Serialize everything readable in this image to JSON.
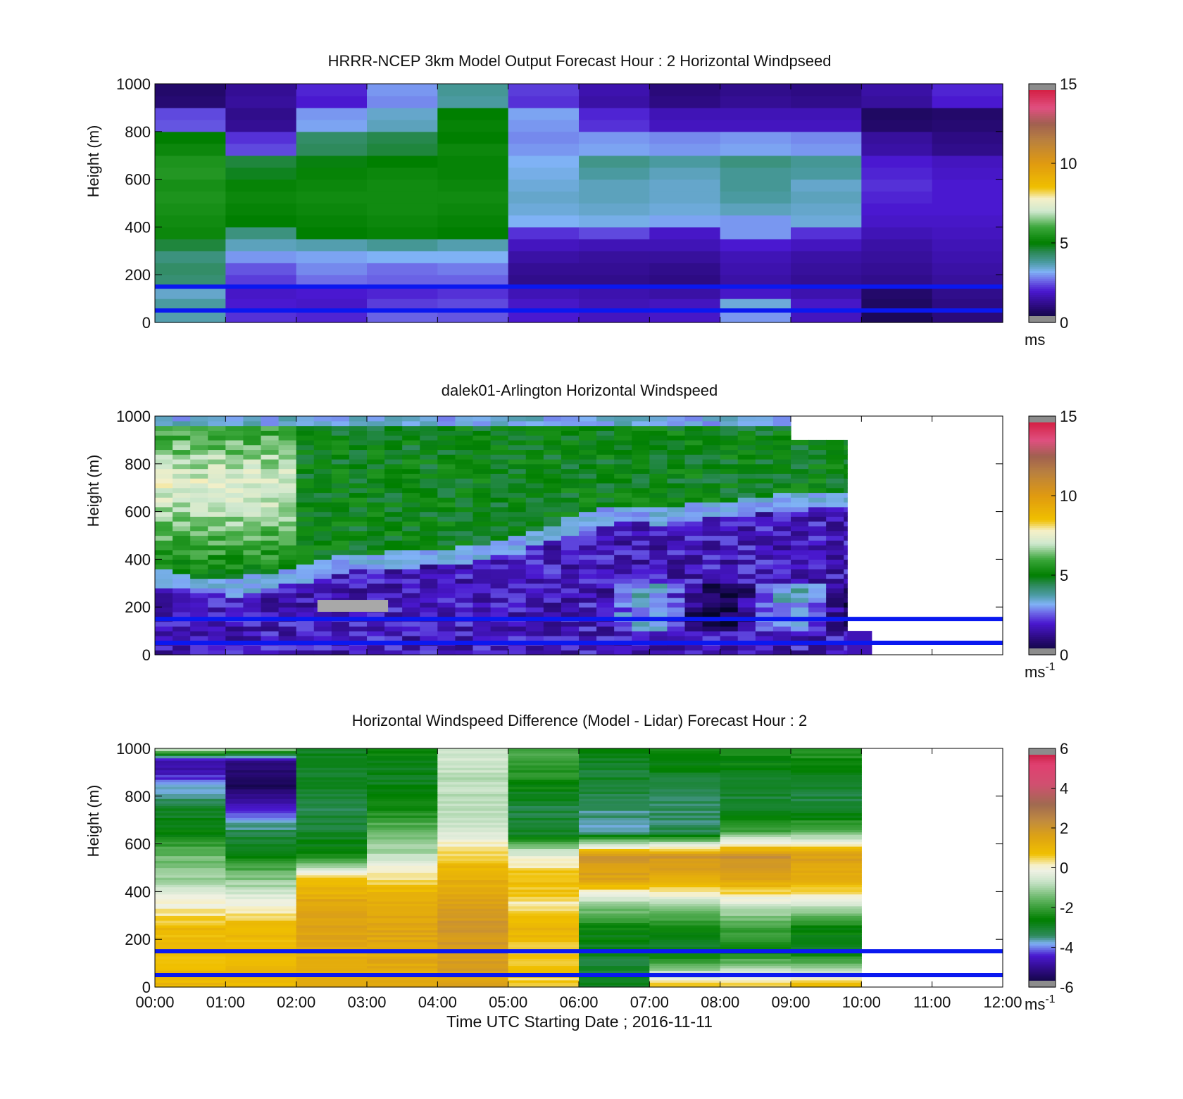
{
  "figure": {
    "xlabel": "Time UTC  Starting Date ; 2016-11-11"
  },
  "chart_data": [
    {
      "type": "heatmap",
      "title": "HRRR-NCEP 3km Model Output   Forecast Hour : 2 Horizontal Windpseed",
      "ylabel": "Height (m)",
      "ylim": [
        0,
        1000
      ],
      "yticks": [
        "0",
        "200",
        "400",
        "600",
        "800",
        "1000"
      ],
      "xlim": [
        0,
        12
      ],
      "x_tick_labels_shown": false,
      "colorbar": {
        "range": [
          0,
          15
        ],
        "ticks": [
          "0",
          "5",
          "10",
          "15"
        ],
        "unit": "ms",
        "unit_sup": ""
      },
      "colormap": "speed",
      "reference_lines_m": [
        150,
        50
      ],
      "reference_line_color": "#0a18f0",
      "levels_m": [
        50,
        100,
        150,
        200,
        250,
        300,
        350,
        400,
        450,
        500,
        550,
        600,
        650,
        700,
        750,
        800,
        850,
        900,
        950,
        1000
      ],
      "columns_hour": [
        0,
        1,
        2,
        3,
        4,
        5,
        6,
        7,
        8,
        9,
        10,
        11
      ],
      "values": [
        [
          3.7,
          2.2,
          2.1,
          2.6,
          2.5,
          2.0,
          1.8,
          1.9,
          3.0,
          1.8,
          0.6,
          1.0
        ],
        [
          3.8,
          2.0,
          1.9,
          2.3,
          2.4,
          1.9,
          1.7,
          1.8,
          3.4,
          1.9,
          0.7,
          1.1
        ],
        [
          3.5,
          1.9,
          2.0,
          2.1,
          2.2,
          1.7,
          1.6,
          1.5,
          1.9,
          1.6,
          0.8,
          1.2
        ],
        [
          4.2,
          2.3,
          2.7,
          2.6,
          2.6,
          1.2,
          1.2,
          1.1,
          1.5,
          1.3,
          1.2,
          1.4
        ],
        [
          4.3,
          2.5,
          2.9,
          2.7,
          2.8,
          1.3,
          1.3,
          1.2,
          1.6,
          1.4,
          1.3,
          1.5
        ],
        [
          4.1,
          3.0,
          3.1,
          3.2,
          3.2,
          1.5,
          1.4,
          1.4,
          1.7,
          1.5,
          1.4,
          1.6
        ],
        [
          4.6,
          3.6,
          3.7,
          3.9,
          3.7,
          1.8,
          1.7,
          1.7,
          2.0,
          1.8,
          1.5,
          1.7
        ],
        [
          5.2,
          4.1,
          5.0,
          5.1,
          5.0,
          2.2,
          2.4,
          1.9,
          3.0,
          2.2,
          1.7,
          1.8
        ],
        [
          5.3,
          5.0,
          5.1,
          5.2,
          5.1,
          3.2,
          3.3,
          3.1,
          3.0,
          3.4,
          1.9,
          1.9
        ],
        [
          5.4,
          5.1,
          5.2,
          5.3,
          5.2,
          3.4,
          3.5,
          3.4,
          3.6,
          3.5,
          2.0,
          2.0
        ],
        [
          5.5,
          5.2,
          5.3,
          5.3,
          5.3,
          3.5,
          3.6,
          3.5,
          3.8,
          3.6,
          2.1,
          2.0
        ],
        [
          5.4,
          5.1,
          5.2,
          5.3,
          5.2,
          3.4,
          3.6,
          3.5,
          3.9,
          3.5,
          2.2,
          2.0
        ],
        [
          5.6,
          4.8,
          5.1,
          5.2,
          5.1,
          3.3,
          3.8,
          3.6,
          3.9,
          3.8,
          2.1,
          1.9
        ],
        [
          5.5,
          4.6,
          4.9,
          5.0,
          5.1,
          3.2,
          4.0,
          3.8,
          4.1,
          3.9,
          2.0,
          1.8
        ],
        [
          5.2,
          2.4,
          4.4,
          4.6,
          5.2,
          3.0,
          3.1,
          3.0,
          3.1,
          3.0,
          1.5,
          1.2
        ],
        [
          5.0,
          2.2,
          4.3,
          4.5,
          5.0,
          2.9,
          3.0,
          2.9,
          3.0,
          2.9,
          1.4,
          1.1
        ],
        [
          2.5,
          1.3,
          3.1,
          3.6,
          5.1,
          3.0,
          2.2,
          1.8,
          1.8,
          1.8,
          0.8,
          0.9
        ],
        [
          2.4,
          1.2,
          3.0,
          3.5,
          5.0,
          3.1,
          2.1,
          1.7,
          1.7,
          1.7,
          0.7,
          0.8
        ],
        [
          0.9,
          1.4,
          2.0,
          2.9,
          3.8,
          2.2,
          1.5,
          1.1,
          1.3,
          1.2,
          1.4,
          2.0
        ],
        [
          0.8,
          1.3,
          2.1,
          3.0,
          3.9,
          2.3,
          1.6,
          1.0,
          1.2,
          1.1,
          1.5,
          2.1
        ]
      ]
    },
    {
      "type": "heatmap",
      "title": "dalek01-Arlington  Horizontal Windspeed",
      "ylabel": "Height (m)",
      "ylim": [
        0,
        1000
      ],
      "yticks": [
        "0",
        "200",
        "400",
        "600",
        "800",
        "1000"
      ],
      "xlim": [
        0,
        12
      ],
      "x_tick_labels_shown": false,
      "colorbar": {
        "range": [
          0,
          15
        ],
        "ticks": [
          "0",
          "5",
          "10",
          "15"
        ],
        "unit": "ms",
        "unit_sup": "-1"
      },
      "colormap": "speed",
      "reference_lines_m": [
        150,
        50
      ],
      "reference_line_color": "#0a18f0",
      "data_end_hour": 9.8,
      "profile_interval_hours": 0.25,
      "boundary_layer_top_m": [
        [
          0.0,
          330
        ],
        [
          0.5,
          300
        ],
        [
          1.0,
          290
        ],
        [
          1.5,
          320
        ],
        [
          2.0,
          350
        ],
        [
          2.5,
          390
        ],
        [
          3.0,
          400
        ],
        [
          3.5,
          410
        ],
        [
          4.0,
          420
        ],
        [
          4.5,
          440
        ],
        [
          5.0,
          470
        ],
        [
          5.5,
          520
        ],
        [
          6.0,
          570
        ],
        [
          6.5,
          600
        ],
        [
          7.0,
          590
        ],
        [
          7.5,
          610
        ],
        [
          8.0,
          620
        ],
        [
          8.5,
          640
        ],
        [
          9.0,
          650
        ],
        [
          9.5,
          660
        ],
        [
          9.8,
          660
        ]
      ],
      "lower_band_speed_ms": 1.8,
      "upper_band_speed_ms": 5.0,
      "upper_band_max_speed_ms": 7.5,
      "missing_patch": {
        "x_hours": [
          2.3,
          3.3
        ],
        "y_m": [
          180,
          230
        ]
      }
    },
    {
      "type": "heatmap",
      "title": "Horizontal Windspeed Difference (Model - Lidar) Forecast Hour : 2",
      "ylabel": "Height (m)",
      "ylim": [
        0,
        1000
      ],
      "yticks": [
        "0",
        "200",
        "400",
        "600",
        "800",
        "1000"
      ],
      "xlim": [
        0,
        12
      ],
      "x_tick_labels": [
        "00:00",
        "01:00",
        "02:00",
        "03:00",
        "04:00",
        "05:00",
        "06:00",
        "07:00",
        "08:00",
        "09:00",
        "10:00",
        "11:00",
        "12:00"
      ],
      "colorbar": {
        "range": [
          -6,
          6
        ],
        "ticks": [
          "-6",
          "-4",
          "-2",
          "0",
          "2",
          "4",
          "6"
        ],
        "unit": "ms",
        "unit_sup": "-1"
      },
      "colormap": "diff",
      "reference_lines_m": [
        150,
        50
      ],
      "reference_line_color": "#0a18f0",
      "data_end_hour": 10,
      "column_profiles": [
        [
          [
            0,
            1.0
          ],
          [
            150,
            0.8
          ],
          [
            250,
            0.9
          ],
          [
            350,
            0.0
          ],
          [
            450,
            -1.0
          ],
          [
            550,
            -1.5
          ],
          [
            650,
            -2.7
          ],
          [
            750,
            -3.0
          ],
          [
            850,
            -4.0
          ],
          [
            950,
            -5.0
          ],
          [
            1000,
            -0.5
          ]
        ],
        [
          [
            0,
            1.0
          ],
          [
            150,
            0.8
          ],
          [
            250,
            1.0
          ],
          [
            350,
            0.0
          ],
          [
            450,
            -1.2
          ],
          [
            550,
            -2.5
          ],
          [
            650,
            -3.2
          ],
          [
            750,
            -4.5
          ],
          [
            850,
            -5.5
          ],
          [
            950,
            -5.0
          ],
          [
            1000,
            -1.0
          ]
        ],
        [
          [
            0,
            1.2
          ],
          [
            150,
            1.3
          ],
          [
            250,
            1.6
          ],
          [
            350,
            1.5
          ],
          [
            450,
            0.8
          ],
          [
            550,
            -2.5
          ],
          [
            650,
            -3.0
          ],
          [
            750,
            -3.2
          ],
          [
            850,
            -3.0
          ],
          [
            950,
            -3.0
          ],
          [
            1000,
            -2.8
          ]
        ],
        [
          [
            0,
            1.3
          ],
          [
            150,
            1.4
          ],
          [
            250,
            1.5
          ],
          [
            350,
            1.3
          ],
          [
            450,
            0.5
          ],
          [
            550,
            -0.8
          ],
          [
            650,
            -1.5
          ],
          [
            750,
            -2.5
          ],
          [
            850,
            -2.8
          ],
          [
            950,
            -2.7
          ],
          [
            1000,
            -2.5
          ]
        ],
        [
          [
            0,
            1.5
          ],
          [
            150,
            1.8
          ],
          [
            250,
            2.0
          ],
          [
            350,
            1.7
          ],
          [
            450,
            1.2
          ],
          [
            550,
            0.6
          ],
          [
            650,
            -0.5
          ],
          [
            750,
            -0.7
          ],
          [
            850,
            -0.8
          ],
          [
            950,
            -0.6
          ],
          [
            1000,
            -0.5
          ]
        ],
        [
          [
            0,
            0.5
          ],
          [
            150,
            0.6
          ],
          [
            250,
            1.0
          ],
          [
            350,
            0.3
          ],
          [
            450,
            0.9
          ],
          [
            550,
            -0.2
          ],
          [
            650,
            -3.0
          ],
          [
            750,
            -3.2
          ],
          [
            850,
            -2.5
          ],
          [
            950,
            -2.0
          ],
          [
            1000,
            -1.8
          ]
        ],
        [
          [
            0,
            -3.0
          ],
          [
            150,
            -3.0
          ],
          [
            250,
            -2.5
          ],
          [
            350,
            -1.0
          ],
          [
            450,
            1.5
          ],
          [
            550,
            2.0
          ],
          [
            650,
            -3.5
          ],
          [
            750,
            -3.5
          ],
          [
            850,
            -3.0
          ],
          [
            950,
            -3.0
          ],
          [
            1000,
            -2.8
          ]
        ],
        [
          [
            0,
            0.8
          ],
          [
            150,
            -3.0
          ],
          [
            250,
            -2.5
          ],
          [
            350,
            -0.8
          ],
          [
            450,
            1.2
          ],
          [
            550,
            2.0
          ],
          [
            650,
            -3.3
          ],
          [
            750,
            -3.4
          ],
          [
            850,
            -3.1
          ],
          [
            950,
            -2.6
          ],
          [
            1000,
            -2.4
          ]
        ],
        [
          [
            0,
            0.7
          ],
          [
            150,
            -2.5
          ],
          [
            250,
            -2.0
          ],
          [
            350,
            -0.5
          ],
          [
            450,
            1.5
          ],
          [
            550,
            2.2
          ],
          [
            650,
            -1.8
          ],
          [
            750,
            -3.2
          ],
          [
            850,
            -3.0
          ],
          [
            950,
            -2.5
          ],
          [
            1000,
            -2.5
          ]
        ],
        [
          [
            0,
            1.0
          ],
          [
            150,
            -2.8
          ],
          [
            250,
            -2.6
          ],
          [
            350,
            -0.4
          ],
          [
            450,
            1.2
          ],
          [
            550,
            1.7
          ],
          [
            650,
            -1.5
          ],
          [
            750,
            -3.2
          ],
          [
            850,
            -3.0
          ],
          [
            950,
            -2.4
          ],
          [
            1000,
            -2.2
          ]
        ]
      ]
    }
  ]
}
